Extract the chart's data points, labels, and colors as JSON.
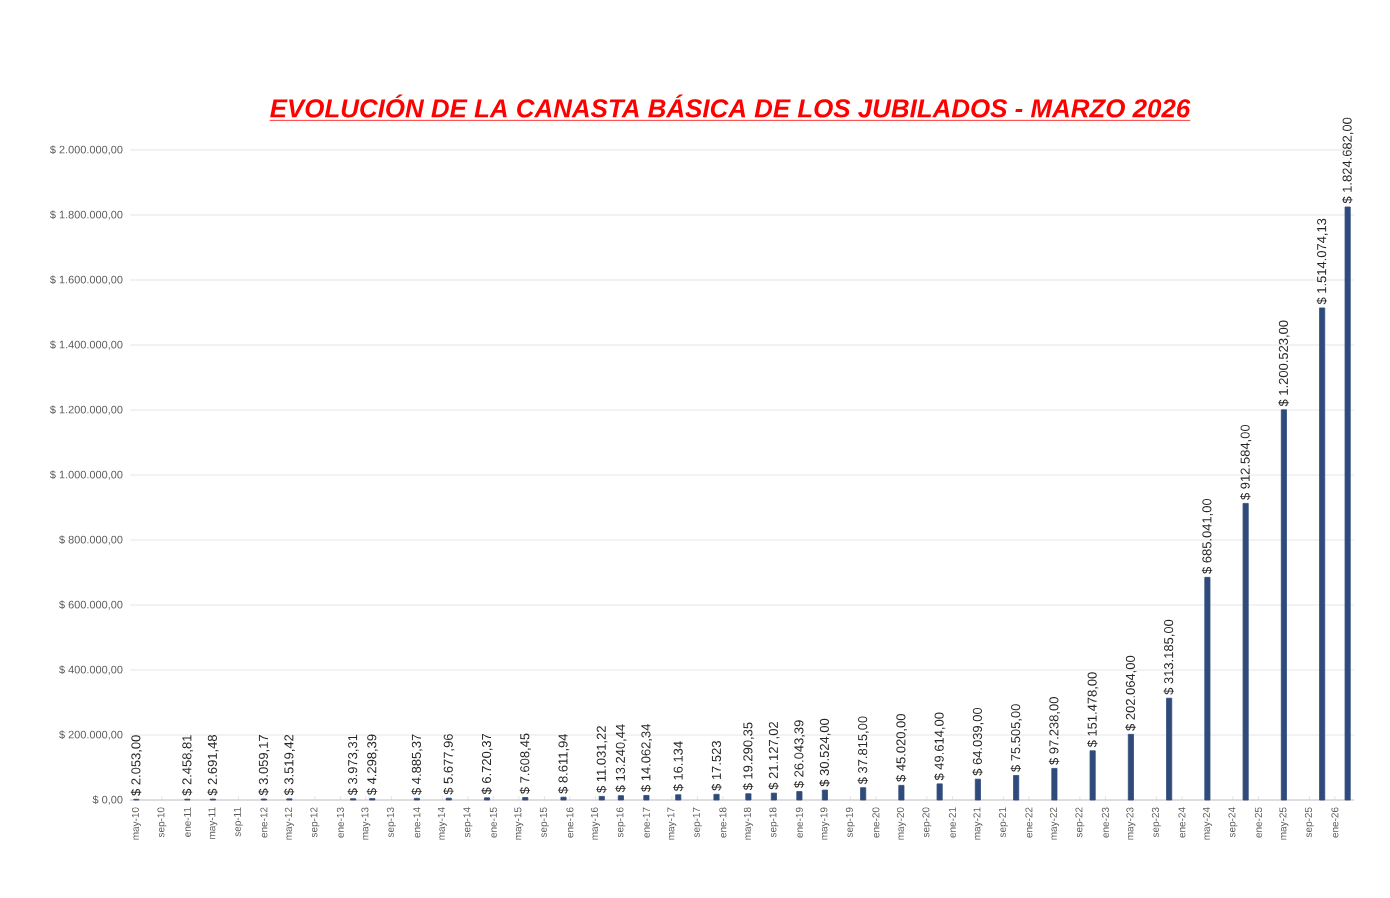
{
  "chart_data": {
    "type": "bar",
    "title": "EVOLUCIÓN DE LA CANASTA BÁSICA DE LOS JUBILADOS - MARZO 2026",
    "color": "#2f4b7c",
    "grid": "y",
    "x": [
      "2010-05",
      "2011-01",
      "2011-05",
      "2012-01",
      "2012-05",
      "2013-03",
      "2013-06",
      "2014-01",
      "2014-06",
      "2014-12",
      "2015-06",
      "2015-12",
      "2016-06",
      "2016-09",
      "2017-01",
      "2017-06",
      "2017-12",
      "2018-05",
      "2018-09",
      "2019-01",
      "2019-05",
      "2019-11",
      "2020-05",
      "2020-11",
      "2021-05",
      "2021-11",
      "2022-05",
      "2022-11",
      "2023-05",
      "2023-11",
      "2024-05",
      "2024-11",
      "2025-05",
      "2025-11",
      "2026-03"
    ],
    "values": [
      2053.0,
      2458.81,
      2691.48,
      3059.17,
      3519.42,
      3973.31,
      4298.39,
      4885.37,
      5677.96,
      6720.37,
      7608.45,
      8611.94,
      11031.22,
      13240.44,
      14062.34,
      16134,
      17523,
      19290.35,
      21127.02,
      26043.39,
      30524.0,
      37815.0,
      45020.0,
      49614.0,
      64039.0,
      75505.0,
      97238.0,
      151478.0,
      202064.0,
      313185.0,
      685041.0,
      912584.0,
      1200523.0,
      1514074.13,
      1824682.0
    ],
    "value_labels": [
      "$ 2.053,00",
      "$ 2.458,81",
      "$ 2.691,48",
      "$ 3.059,17",
      "$ 3.519,42",
      "$ 3.973,31",
      "$ 4.298,39",
      "$ 4.885,37",
      "$ 5.677,96",
      "$ 6.720,37",
      "$ 7.608,45",
      "$ 8.611,94",
      "$ 11.031,22",
      "$ 13.240,44",
      "$ 14.062,34",
      "$ 16.134",
      "$ 17.523",
      "$ 19.290,35",
      "$ 21.127,02",
      "$ 26.043,39",
      "$ 30.524,00",
      "$ 37.815,00",
      "$ 45.020,00",
      "$ 49.614,00",
      "$ 64.039,00",
      "$ 75.505,00",
      "$ 97.238,00",
      "$ 151.478,00",
      "$ 202.064,00",
      "$ 313.185,00",
      "$ 685.041,00",
      "$ 912.584,00",
      "$ 1.200.523,00",
      "$ 1.514.074,13",
      "$ 1.824.682,00"
    ],
    "xlim": [
      "2010-04",
      "2026-04"
    ],
    "xticks": [
      {
        "value": "2010-05",
        "label": "may-10"
      },
      {
        "value": "2010-09",
        "label": "sep-10"
      },
      {
        "value": "2011-01",
        "label": "ene-11"
      },
      {
        "value": "2011-05",
        "label": "may-11"
      },
      {
        "value": "2011-09",
        "label": "sep-11"
      },
      {
        "value": "2012-01",
        "label": "ene-12"
      },
      {
        "value": "2012-05",
        "label": "may-12"
      },
      {
        "value": "2012-09",
        "label": "sep-12"
      },
      {
        "value": "2013-01",
        "label": "ene-13"
      },
      {
        "value": "2013-05",
        "label": "may-13"
      },
      {
        "value": "2013-09",
        "label": "sep-13"
      },
      {
        "value": "2014-01",
        "label": "ene-14"
      },
      {
        "value": "2014-05",
        "label": "may-14"
      },
      {
        "value": "2014-09",
        "label": "sep-14"
      },
      {
        "value": "2015-01",
        "label": "ene-15"
      },
      {
        "value": "2015-05",
        "label": "may-15"
      },
      {
        "value": "2015-09",
        "label": "sep-15"
      },
      {
        "value": "2016-01",
        "label": "ene-16"
      },
      {
        "value": "2016-05",
        "label": "may-16"
      },
      {
        "value": "2016-09",
        "label": "sep-16"
      },
      {
        "value": "2017-01",
        "label": "ene-17"
      },
      {
        "value": "2017-05",
        "label": "may-17"
      },
      {
        "value": "2017-09",
        "label": "sep-17"
      },
      {
        "value": "2018-01",
        "label": "ene-18"
      },
      {
        "value": "2018-05",
        "label": "may-18"
      },
      {
        "value": "2018-09",
        "label": "sep-18"
      },
      {
        "value": "2019-01",
        "label": "ene-19"
      },
      {
        "value": "2019-05",
        "label": "may-19"
      },
      {
        "value": "2019-09",
        "label": "sep-19"
      },
      {
        "value": "2020-01",
        "label": "ene-20"
      },
      {
        "value": "2020-05",
        "label": "may-20"
      },
      {
        "value": "2020-09",
        "label": "sep-20"
      },
      {
        "value": "2021-01",
        "label": "ene-21"
      },
      {
        "value": "2021-05",
        "label": "may-21"
      },
      {
        "value": "2021-09",
        "label": "sep-21"
      },
      {
        "value": "2022-01",
        "label": "ene-22"
      },
      {
        "value": "2022-05",
        "label": "may-22"
      },
      {
        "value": "2022-09",
        "label": "sep-22"
      },
      {
        "value": "2023-01",
        "label": "ene-23"
      },
      {
        "value": "2023-05",
        "label": "may-23"
      },
      {
        "value": "2023-09",
        "label": "sep-23"
      },
      {
        "value": "2024-01",
        "label": "ene-24"
      },
      {
        "value": "2024-05",
        "label": "may-24"
      },
      {
        "value": "2024-09",
        "label": "sep-24"
      },
      {
        "value": "2025-01",
        "label": "ene-25"
      },
      {
        "value": "2025-05",
        "label": "may-25"
      },
      {
        "value": "2025-09",
        "label": "sep-25"
      },
      {
        "value": "2026-01",
        "label": "ene-26"
      }
    ],
    "ylim": [
      0,
      2000000
    ],
    "yticks": [
      {
        "value": 0,
        "label": "$ 0,00"
      },
      {
        "value": 200000,
        "label": "$ 200.000,00"
      },
      {
        "value": 400000,
        "label": "$ 400.000,00"
      },
      {
        "value": 600000,
        "label": "$ 600.000,00"
      },
      {
        "value": 800000,
        "label": "$ 800.000,00"
      },
      {
        "value": 1000000,
        "label": "$ 1.000.000,00"
      },
      {
        "value": 1200000,
        "label": "$ 1.200.000,00"
      },
      {
        "value": 1400000,
        "label": "$ 1.400.000,00"
      },
      {
        "value": 1600000,
        "label": "$ 1.600.000,00"
      },
      {
        "value": 1800000,
        "label": "$ 1.800.000,00"
      },
      {
        "value": 2000000,
        "label": "$ 2.000.000,00"
      }
    ]
  }
}
